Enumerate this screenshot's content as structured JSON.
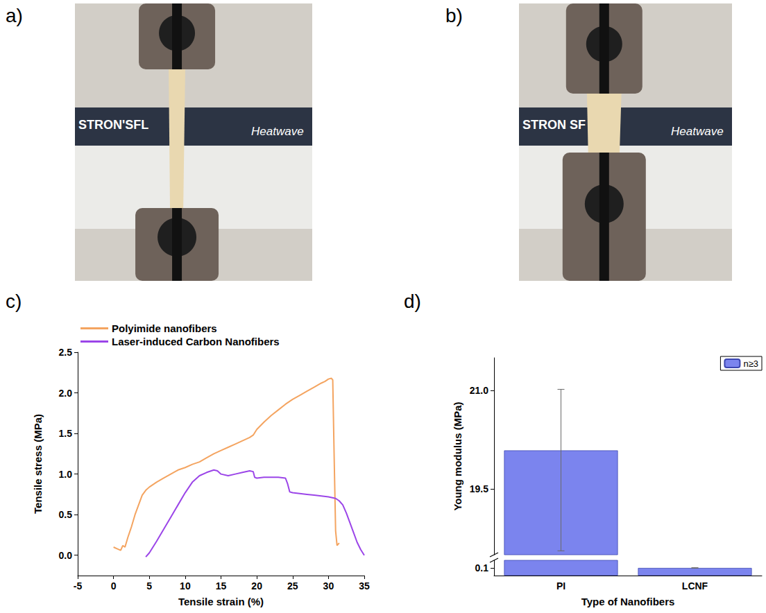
{
  "photos": [
    {
      "panel": "a)",
      "texts": [
        "STRON'SFL",
        "Heatwave"
      ]
    },
    {
      "panel": "b)",
      "texts": [
        "STRON SF",
        "Heatwave"
      ]
    }
  ],
  "chart_data": [
    {
      "panel": "c)",
      "type": "line",
      "xlabel": "Tensile strain (%)",
      "ylabel": "Tensile stress (MPa)",
      "xlim": [
        -5,
        35
      ],
      "xticks": [
        -5,
        0,
        5,
        10,
        15,
        20,
        25,
        30,
        35
      ],
      "ylim": [
        -0.25,
        2.5
      ],
      "yticks": [
        {
          "value": 0,
          "label": "0.0"
        },
        0.5,
        {
          "value": 1,
          "label": "1.0"
        },
        1.5,
        {
          "value": 2,
          "label": "2.0"
        },
        2.5
      ],
      "legend": "top-left",
      "series": [
        {
          "name": "Polyimide nanofibers",
          "color": "#f4a460",
          "x": [
            0,
            0.5,
            1,
            1.3,
            1.6,
            2,
            2.5,
            3,
            3.5,
            4,
            4.5,
            5,
            6,
            7,
            8,
            9,
            10,
            11,
            12,
            13,
            14,
            15,
            16,
            17,
            18,
            19,
            19.5,
            20,
            21,
            22,
            23,
            24,
            25,
            26,
            27,
            28,
            29,
            29.5,
            30,
            30.4,
            30.6,
            30.8,
            31,
            31.2,
            31.5
          ],
          "values": [
            0.1,
            0.08,
            0.06,
            0.12,
            0.1,
            0.22,
            0.35,
            0.5,
            0.62,
            0.74,
            0.8,
            0.84,
            0.9,
            0.95,
            1.0,
            1.05,
            1.08,
            1.12,
            1.15,
            1.2,
            1.25,
            1.29,
            1.33,
            1.37,
            1.41,
            1.45,
            1.48,
            1.55,
            1.64,
            1.72,
            1.79,
            1.86,
            1.92,
            1.97,
            2.02,
            2.07,
            2.12,
            2.14,
            2.17,
            2.18,
            2.16,
            1.2,
            0.3,
            0.12,
            0.15
          ]
        },
        {
          "name": "Laser-induced Carbon Nanofibers",
          "color": "#9b45e8",
          "x": [
            4.5,
            5,
            6,
            7,
            8,
            9,
            10,
            11,
            12,
            13,
            14,
            14.5,
            15,
            16,
            17,
            18,
            19,
            19.5,
            19.7,
            20,
            21,
            22,
            23,
            24,
            24.3,
            24.6,
            25,
            26,
            27,
            28,
            29,
            30,
            31,
            31.5,
            32,
            32.5,
            33,
            33.5,
            34,
            34.5,
            35
          ],
          "values": [
            -0.02,
            0.03,
            0.17,
            0.32,
            0.47,
            0.62,
            0.77,
            0.9,
            0.98,
            1.02,
            1.05,
            1.04,
            1.0,
            0.98,
            1.0,
            1.02,
            1.04,
            1.03,
            0.96,
            0.95,
            0.96,
            0.96,
            0.96,
            0.95,
            0.88,
            0.78,
            0.77,
            0.76,
            0.75,
            0.74,
            0.73,
            0.72,
            0.7,
            0.67,
            0.62,
            0.52,
            0.4,
            0.28,
            0.16,
            0.07,
            0.0
          ]
        }
      ]
    },
    {
      "panel": "d)",
      "type": "bar",
      "xlabel": "Type of Nanofibers",
      "ylabel": "Young modulus (MPa)",
      "categories": [
        "PI",
        "LCNF"
      ],
      "ylim": [
        0,
        21.5
      ],
      "ybreak": [
        0.2,
        18.5
      ],
      "yticks": [
        0.1,
        19.5,
        {
          "value": 21,
          "label": "21.0"
        }
      ],
      "legend": "top-right",
      "series": [
        {
          "name": "n≥3",
          "color": "#7b84ee",
          "values": [
            20.09,
            0.1
          ],
          "error_range": [
            [
              18.56,
              21.02
            ],
            [
              0.097,
              0.103
            ]
          ]
        }
      ]
    }
  ]
}
